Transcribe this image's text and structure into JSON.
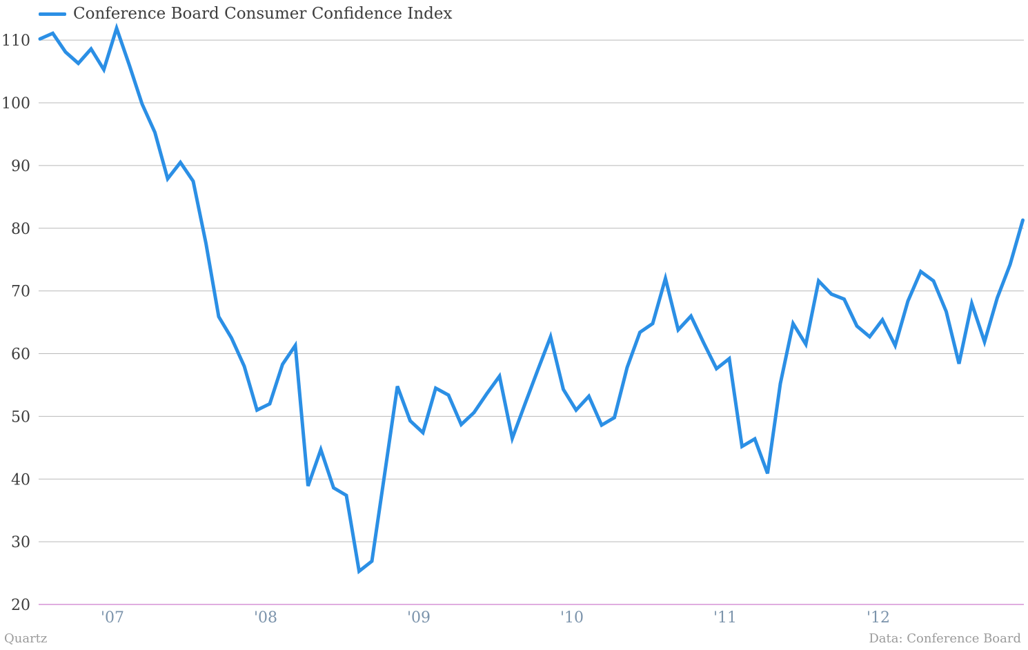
{
  "colors": {
    "series": "#2b8fe5",
    "grid": "#b9b9b9",
    "baseline": "#c05bc0",
    "ytick": "#3d3d3d",
    "xtick": "#7b93ab"
  },
  "footer": {
    "source_left": "Quartz",
    "source_right": "Data: Conference Board"
  },
  "chart_data": {
    "type": "line",
    "title": "",
    "xlabel": "",
    "ylabel": "",
    "legend_position": "top-left",
    "grid": true,
    "ylim": [
      20,
      112
    ],
    "yticks": [
      20,
      30,
      40,
      50,
      60,
      70,
      80,
      90,
      100,
      110
    ],
    "x_start": "2006-07",
    "xticks": [
      {
        "label": "'07",
        "date": "2007-01"
      },
      {
        "label": "'08",
        "date": "2008-01"
      },
      {
        "label": "'09",
        "date": "2009-01"
      },
      {
        "label": "'10",
        "date": "2010-01"
      },
      {
        "label": "'11",
        "date": "2011-01"
      },
      {
        "label": "'12",
        "date": "2012-01"
      }
    ],
    "series": [
      {
        "name": "Conference Board Consumer Confidence Index",
        "x": [
          "2006-07",
          "2006-08",
          "2006-09",
          "2006-10",
          "2006-11",
          "2006-12",
          "2007-01",
          "2007-02",
          "2007-03",
          "2007-04",
          "2007-05",
          "2007-06",
          "2007-07",
          "2007-08",
          "2007-09",
          "2007-10",
          "2007-11",
          "2007-12",
          "2008-01",
          "2008-02",
          "2008-03",
          "2008-04",
          "2008-05",
          "2008-06",
          "2008-07",
          "2008-08",
          "2008-09",
          "2008-10",
          "2008-11",
          "2008-12",
          "2009-01",
          "2009-02",
          "2009-03",
          "2009-04",
          "2009-05",
          "2009-06",
          "2009-07",
          "2009-08",
          "2009-09",
          "2009-10",
          "2009-11",
          "2009-12",
          "2010-01",
          "2010-02",
          "2010-03",
          "2010-04",
          "2010-05",
          "2010-06",
          "2010-07",
          "2010-08",
          "2010-09",
          "2010-10",
          "2010-11",
          "2010-12",
          "2011-01",
          "2011-02",
          "2011-03",
          "2011-04",
          "2011-05",
          "2011-06",
          "2011-07",
          "2011-08",
          "2011-09",
          "2011-10",
          "2011-11",
          "2011-12",
          "2012-01",
          "2012-02",
          "2012-03",
          "2012-04",
          "2012-05",
          "2012-06",
          "2012-07",
          "2012-08",
          "2012-09",
          "2012-10",
          "2012-11",
          "2012-12",
          "2013-01",
          "2013-02"
        ],
        "values": [
          110.2,
          111.1,
          108.1,
          106.3,
          108.6,
          105.3,
          111.9,
          106.0,
          99.8,
          95.3,
          87.9,
          90.5,
          87.5,
          77.6,
          65.9,
          62.5,
          58.0,
          51.0,
          52.0,
          58.3,
          61.3,
          38.9,
          44.7,
          38.6,
          37.4,
          25.3,
          26.9,
          40.8,
          54.8,
          49.3,
          47.4,
          54.5,
          53.4,
          48.7,
          50.6,
          53.6,
          56.4,
          46.5,
          52.0,
          57.4,
          62.7,
          54.3,
          51.0,
          53.2,
          48.6,
          49.8,
          57.8,
          63.4,
          64.8,
          72.0,
          63.8,
          66.0,
          61.7,
          57.6,
          59.2,
          45.2,
          46.4,
          40.9,
          55.2,
          64.8,
          61.5,
          71.6,
          69.5,
          68.7,
          64.4,
          62.7,
          65.4,
          61.3,
          68.4,
          73.1,
          71.6,
          66.7,
          58.4,
          68.0,
          61.9,
          68.9,
          74.2,
          81.3,
          null,
          null
        ]
      }
    ]
  }
}
